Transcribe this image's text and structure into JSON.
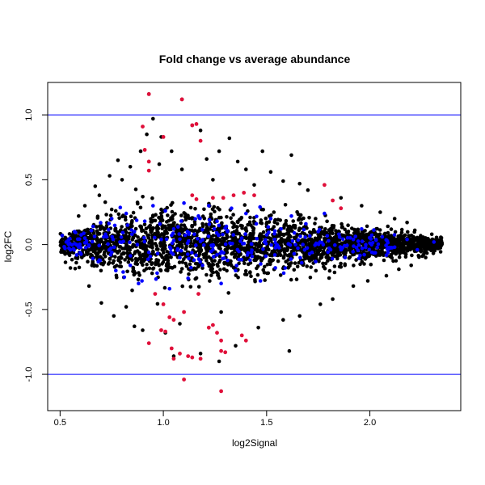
{
  "chart_data": {
    "type": "scatter",
    "title": "Fold change vs average abundance",
    "xlabel": "log2Signal",
    "ylabel": "log2FC",
    "xlim": [
      0.44,
      2.44
    ],
    "ylim": [
      -1.28,
      1.25
    ],
    "x_ticks": [
      "0.5",
      "1.0",
      "1.5",
      "2.0"
    ],
    "y_ticks": [
      "-1.0",
      "-0.5",
      "0.0",
      "0.5",
      "1.0"
    ],
    "reference_lines": [
      1.0,
      -1.0
    ],
    "colors": {
      "background_points": "#000000",
      "highlight_blue": "#0000ff",
      "highlight_red": "#e0103a",
      "reference_line": "#0000ff"
    },
    "series": [
      {
        "points": [
          [
            0.95,
            0.97
          ],
          [
            0.92,
            0.85
          ],
          [
            1.18,
            0.88
          ],
          [
            1.32,
            0.82
          ],
          [
            0.89,
            0.72
          ],
          [
            1.27,
            0.72
          ],
          [
            1.48,
            0.72
          ],
          [
            1.62,
            0.69
          ],
          [
            0.78,
            0.65
          ],
          [
            0.98,
            0.62
          ],
          [
            1.36,
            0.64
          ],
          [
            1.09,
            0.58
          ],
          [
            1.52,
            0.56
          ],
          [
            0.74,
            0.53
          ],
          [
            0.8,
            0.5
          ],
          [
            1.24,
            0.5
          ],
          [
            1.58,
            0.49
          ],
          [
            1.44,
            0.46
          ],
          [
            1.7,
            0.42
          ],
          [
            0.67,
            0.45
          ],
          [
            1.86,
            0.36
          ],
          [
            1.96,
            0.3
          ],
          [
            0.62,
            0.3
          ],
          [
            2.05,
            0.25
          ],
          [
            2.18,
            0.17
          ],
          [
            2.3,
            0.08
          ],
          [
            1.61,
            -0.82
          ],
          [
            1.35,
            -0.78
          ],
          [
            0.86,
            -0.63
          ],
          [
            1.08,
            -0.61
          ],
          [
            1.58,
            -0.58
          ],
          [
            0.76,
            -0.55
          ],
          [
            1.28,
            -0.52
          ],
          [
            1.76,
            -0.46
          ],
          [
            0.7,
            -0.45
          ],
          [
            1.92,
            -0.32
          ],
          [
            2.08,
            -0.24
          ],
          [
            2.2,
            -0.16
          ],
          [
            0.93,
            1.16
          ],
          [
            1.09,
            1.12
          ],
          [
            1.14,
            0.92
          ],
          [
            0.99,
            0.83
          ],
          [
            1.04,
            0.72
          ],
          [
            1.21,
            0.66
          ],
          [
            0.84,
            0.6
          ],
          [
            1.4,
            0.58
          ],
          [
            1.66,
            0.47
          ],
          [
            0.69,
            0.38
          ],
          [
            0.59,
            0.22
          ],
          [
            2.12,
            0.2
          ],
          [
            0.9,
            -0.66
          ],
          [
            1.01,
            -0.68
          ],
          [
            1.18,
            -0.84
          ],
          [
            1.27,
            -0.9
          ],
          [
            1.05,
            -0.86
          ],
          [
            0.82,
            -0.48
          ],
          [
            1.46,
            -0.64
          ],
          [
            1.66,
            -0.55
          ],
          [
            1.82,
            -0.42
          ],
          [
            1.99,
            -0.28
          ],
          [
            2.14,
            -0.19
          ],
          [
            2.27,
            -0.1
          ],
          [
            0.64,
            -0.32
          ],
          [
            0.55,
            -0.18
          ]
        ]
      },
      {
        "points": [
          [
            0.51,
            0.07
          ],
          [
            0.53,
            0.02
          ],
          [
            0.55,
            -0.04
          ],
          [
            0.57,
            0.1
          ],
          [
            0.58,
            -0.08
          ],
          [
            0.62,
            0.05
          ],
          [
            0.64,
            -0.01
          ],
          [
            0.66,
            0.14
          ],
          [
            0.69,
            -0.12
          ],
          [
            0.72,
            0.08
          ],
          [
            0.75,
            0.2
          ],
          [
            0.77,
            -0.2
          ],
          [
            0.79,
            0.02
          ],
          [
            0.82,
            0.24
          ],
          [
            0.84,
            -0.16
          ],
          [
            0.86,
            0.1
          ],
          [
            0.88,
            -0.3
          ],
          [
            0.91,
            0.18
          ],
          [
            0.93,
            -0.06
          ],
          [
            0.95,
            0.3
          ],
          [
            0.97,
            -0.22
          ],
          [
            0.99,
            0.04
          ],
          [
            1.01,
            0.26
          ],
          [
            1.03,
            -0.34
          ],
          [
            1.05,
            0.12
          ],
          [
            1.08,
            -0.1
          ],
          [
            1.1,
            0.32
          ],
          [
            1.12,
            -0.26
          ],
          [
            1.15,
            0.08
          ],
          [
            1.17,
            0.22
          ],
          [
            1.19,
            -0.16
          ],
          [
            1.22,
            0.3
          ],
          [
            1.24,
            -0.04
          ],
          [
            1.26,
            0.18
          ],
          [
            1.28,
            -0.3
          ],
          [
            1.31,
            0.1
          ],
          [
            1.33,
            0.28
          ],
          [
            1.35,
            -0.2
          ],
          [
            1.38,
            0.05
          ],
          [
            1.4,
            0.24
          ],
          [
            1.42,
            -0.12
          ],
          [
            1.45,
            0.16
          ],
          [
            1.47,
            -0.28
          ],
          [
            1.49,
            0.02
          ],
          [
            1.52,
            0.2
          ],
          [
            1.54,
            -0.08
          ],
          [
            1.57,
            0.12
          ],
          [
            1.59,
            -0.18
          ],
          [
            1.62,
            0.22
          ],
          [
            1.64,
            0.0
          ],
          [
            1.67,
            -0.14
          ],
          [
            1.69,
            0.16
          ],
          [
            1.72,
            -0.06
          ],
          [
            1.75,
            0.1
          ],
          [
            1.78,
            0.24
          ],
          [
            1.81,
            -0.04
          ],
          [
            1.85,
            0.08
          ],
          [
            1.88,
            -0.1
          ],
          [
            1.92,
            0.04
          ],
          [
            1.96,
            0.12
          ],
          [
            2.01,
            -0.06
          ],
          [
            2.06,
            0.06
          ],
          [
            2.12,
            -0.02
          ],
          [
            2.18,
            0.04
          ],
          [
            2.23,
            -0.04
          ],
          [
            2.31,
            0.02
          ]
        ]
      },
      {
        "points": [
          [
            0.93,
            1.16
          ],
          [
            1.09,
            1.12
          ],
          [
            0.9,
            0.91
          ],
          [
            1.14,
            0.92
          ],
          [
            1.16,
            0.93
          ],
          [
            1.0,
            0.83
          ],
          [
            1.18,
            0.8
          ],
          [
            0.91,
            0.73
          ],
          [
            0.93,
            0.64
          ],
          [
            0.93,
            0.57
          ],
          [
            1.14,
            0.38
          ],
          [
            1.16,
            0.35
          ],
          [
            1.24,
            0.36
          ],
          [
            1.29,
            0.36
          ],
          [
            1.34,
            0.38
          ],
          [
            1.39,
            0.4
          ],
          [
            1.44,
            0.38
          ],
          [
            1.78,
            0.46
          ],
          [
            1.82,
            0.34
          ],
          [
            1.86,
            0.28
          ],
          [
            0.96,
            -0.38
          ],
          [
            1.0,
            -0.46
          ],
          [
            1.03,
            -0.56
          ],
          [
            1.05,
            -0.58
          ],
          [
            1.1,
            -0.52
          ],
          [
            1.17,
            -0.38
          ],
          [
            1.24,
            -0.62
          ],
          [
            0.93,
            -0.76
          ],
          [
            0.99,
            -0.66
          ],
          [
            1.01,
            -0.67
          ],
          [
            1.04,
            -0.8
          ],
          [
            1.05,
            -0.88
          ],
          [
            1.08,
            -0.84
          ],
          [
            1.12,
            -0.86
          ],
          [
            1.14,
            -0.87
          ],
          [
            1.18,
            -0.88
          ],
          [
            1.22,
            -0.64
          ],
          [
            1.26,
            -0.68
          ],
          [
            1.28,
            -0.82
          ],
          [
            1.28,
            -0.74
          ],
          [
            1.3,
            -0.83
          ],
          [
            1.38,
            -0.7
          ],
          [
            1.4,
            -0.74
          ],
          [
            1.1,
            -1.04
          ],
          [
            1.28,
            -1.13
          ]
        ]
      }
    ]
  }
}
